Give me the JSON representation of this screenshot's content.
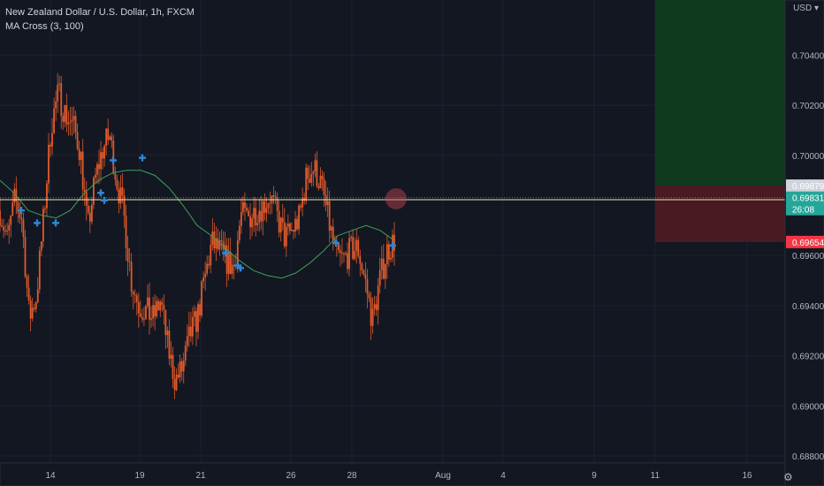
{
  "legend": {
    "title": "New Zealand Dollar / U.S. Dollar, 1h, FXCM",
    "indicator": "MA Cross (3, 100)"
  },
  "currency_button": "USD",
  "colors": {
    "background": "#131722",
    "candle": "#e05a2b",
    "ma": "#3fa05a",
    "cross": "#2f87d6",
    "profit": "#0f3a1e",
    "loss": "#4a1a22",
    "current": "#26a69a",
    "stop": "#f23645",
    "hline": "#f0e8b0"
  },
  "chart_data": {
    "type": "line",
    "instrument": "New Zealand Dollar / U.S. Dollar, 1h, FXCM",
    "y_ticks": [
      "0.70400",
      "0.70200",
      "0.70000",
      "0.69600",
      "0.69400",
      "0.69200",
      "0.69000",
      "0.68800"
    ],
    "x_ticks": [
      "14",
      "19",
      "21",
      "26",
      "28",
      "Aug",
      "4",
      "9",
      "11",
      "16"
    ],
    "ylim": [
      0.6868,
      0.7062
    ],
    "price_series": {
      "name": "NZD/USD",
      "values": [
        0.6978,
        0.6966,
        0.6982,
        0.6975,
        0.6935,
        0.6944,
        0.6976,
        0.7012,
        0.7025,
        0.7016,
        0.7012,
        0.7002,
        0.697,
        0.699,
        0.7002,
        0.7008,
        0.699,
        0.6975,
        0.695,
        0.694,
        0.6938,
        0.6935,
        0.6942,
        0.6923,
        0.691,
        0.6915,
        0.6928,
        0.6935,
        0.695,
        0.6965,
        0.6962,
        0.6958,
        0.6955,
        0.6976,
        0.6975,
        0.6978,
        0.698,
        0.6984,
        0.6975,
        0.6967,
        0.697,
        0.6975,
        0.6992,
        0.6995,
        0.6988,
        0.6974,
        0.696,
        0.6958,
        0.6962,
        0.6963,
        0.695,
        0.6934,
        0.695,
        0.6962,
        0.6966
      ]
    },
    "ma_series": {
      "name": "MA 100",
      "values": [
        0.699,
        0.6985,
        0.6978,
        0.6976,
        0.6975,
        0.6978,
        0.6985,
        0.699,
        0.6993,
        0.6994,
        0.6994,
        0.6992,
        0.6987,
        0.698,
        0.6972,
        0.6968,
        0.6963,
        0.6958,
        0.6954,
        0.6952,
        0.6951,
        0.6953,
        0.6957,
        0.6962,
        0.6968,
        0.697,
        0.6972,
        0.697,
        0.6966
      ]
    },
    "crosses": [
      0.6978,
      0.6973,
      0.6973,
      0.6985,
      0.6982,
      0.6998,
      0.6999,
      0.6961,
      0.6956,
      0.6955,
      0.6965,
      0.6964
    ],
    "current_price": {
      "value": 0.69831,
      "label": "0.69831",
      "countdown": "26:08"
    },
    "entry_price": {
      "value": 0.69879,
      "label": "0.69879"
    },
    "stop_price": {
      "value": 0.69654,
      "label": "0.69654"
    },
    "target_price": {
      "value": 0.7062
    },
    "horizontal_line": 0.69823
  }
}
